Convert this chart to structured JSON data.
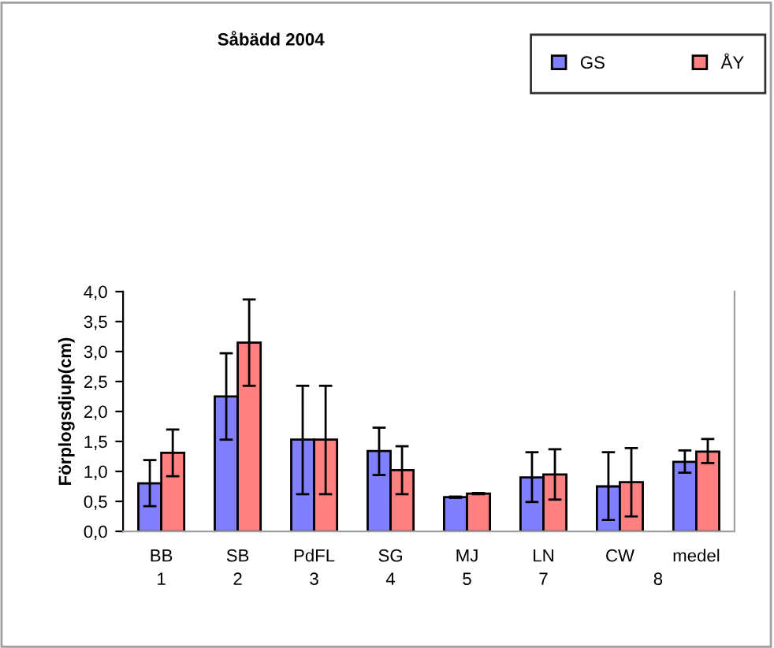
{
  "chart_data": {
    "type": "bar",
    "title": "Såbädd 2004",
    "ylabel": "Förplogsdjup(cm)",
    "categories": [
      "BB",
      "SB",
      "PdFL",
      "SG",
      "MJ",
      "LN",
      "CW",
      "medel"
    ],
    "series": [
      {
        "name": "GS",
        "color": "#8080ff",
        "values": [
          0.8,
          2.25,
          1.53,
          1.34,
          0.57,
          0.9,
          0.75,
          1.16
        ],
        "errors": [
          [
            0.42,
            1.19
          ],
          [
            1.53,
            2.97
          ],
          [
            0.62,
            2.43
          ],
          [
            0.94,
            1.73
          ],
          [
            0.56,
            0.58
          ],
          [
            0.49,
            1.32
          ],
          [
            0.19,
            1.32
          ],
          [
            0.98,
            1.35
          ]
        ]
      },
      {
        "name": "ÅY",
        "color": "#ff8080",
        "values": [
          1.31,
          3.15,
          1.53,
          1.02,
          0.63,
          0.95,
          0.82,
          1.33
        ],
        "errors": [
          [
            0.92,
            1.7
          ],
          [
            2.43,
            3.87
          ],
          [
            0.62,
            2.43
          ],
          [
            0.62,
            1.42
          ],
          [
            0.62,
            0.64
          ],
          [
            0.53,
            1.37
          ],
          [
            0.25,
            1.39
          ],
          [
            1.14,
            1.54
          ]
        ]
      }
    ],
    "ylim": [
      0,
      4
    ],
    "yticks": [
      {
        "value": 0,
        "label": "0,0"
      },
      {
        "value": 0.5,
        "label": "0,5"
      },
      {
        "value": 1,
        "label": "1,0"
      },
      {
        "value": 1.5,
        "label": "1,5"
      },
      {
        "value": 2,
        "label": "2,0"
      },
      {
        "value": 2.5,
        "label": "2,5"
      },
      {
        "value": 3,
        "label": "3,0"
      },
      {
        "value": 3.5,
        "label": "3,5"
      },
      {
        "value": 4,
        "label": "4,0"
      }
    ],
    "grid": false,
    "legend": "top right",
    "annotations": [
      "1",
      "2",
      "3",
      "4",
      "5",
      "7",
      "8"
    ]
  }
}
